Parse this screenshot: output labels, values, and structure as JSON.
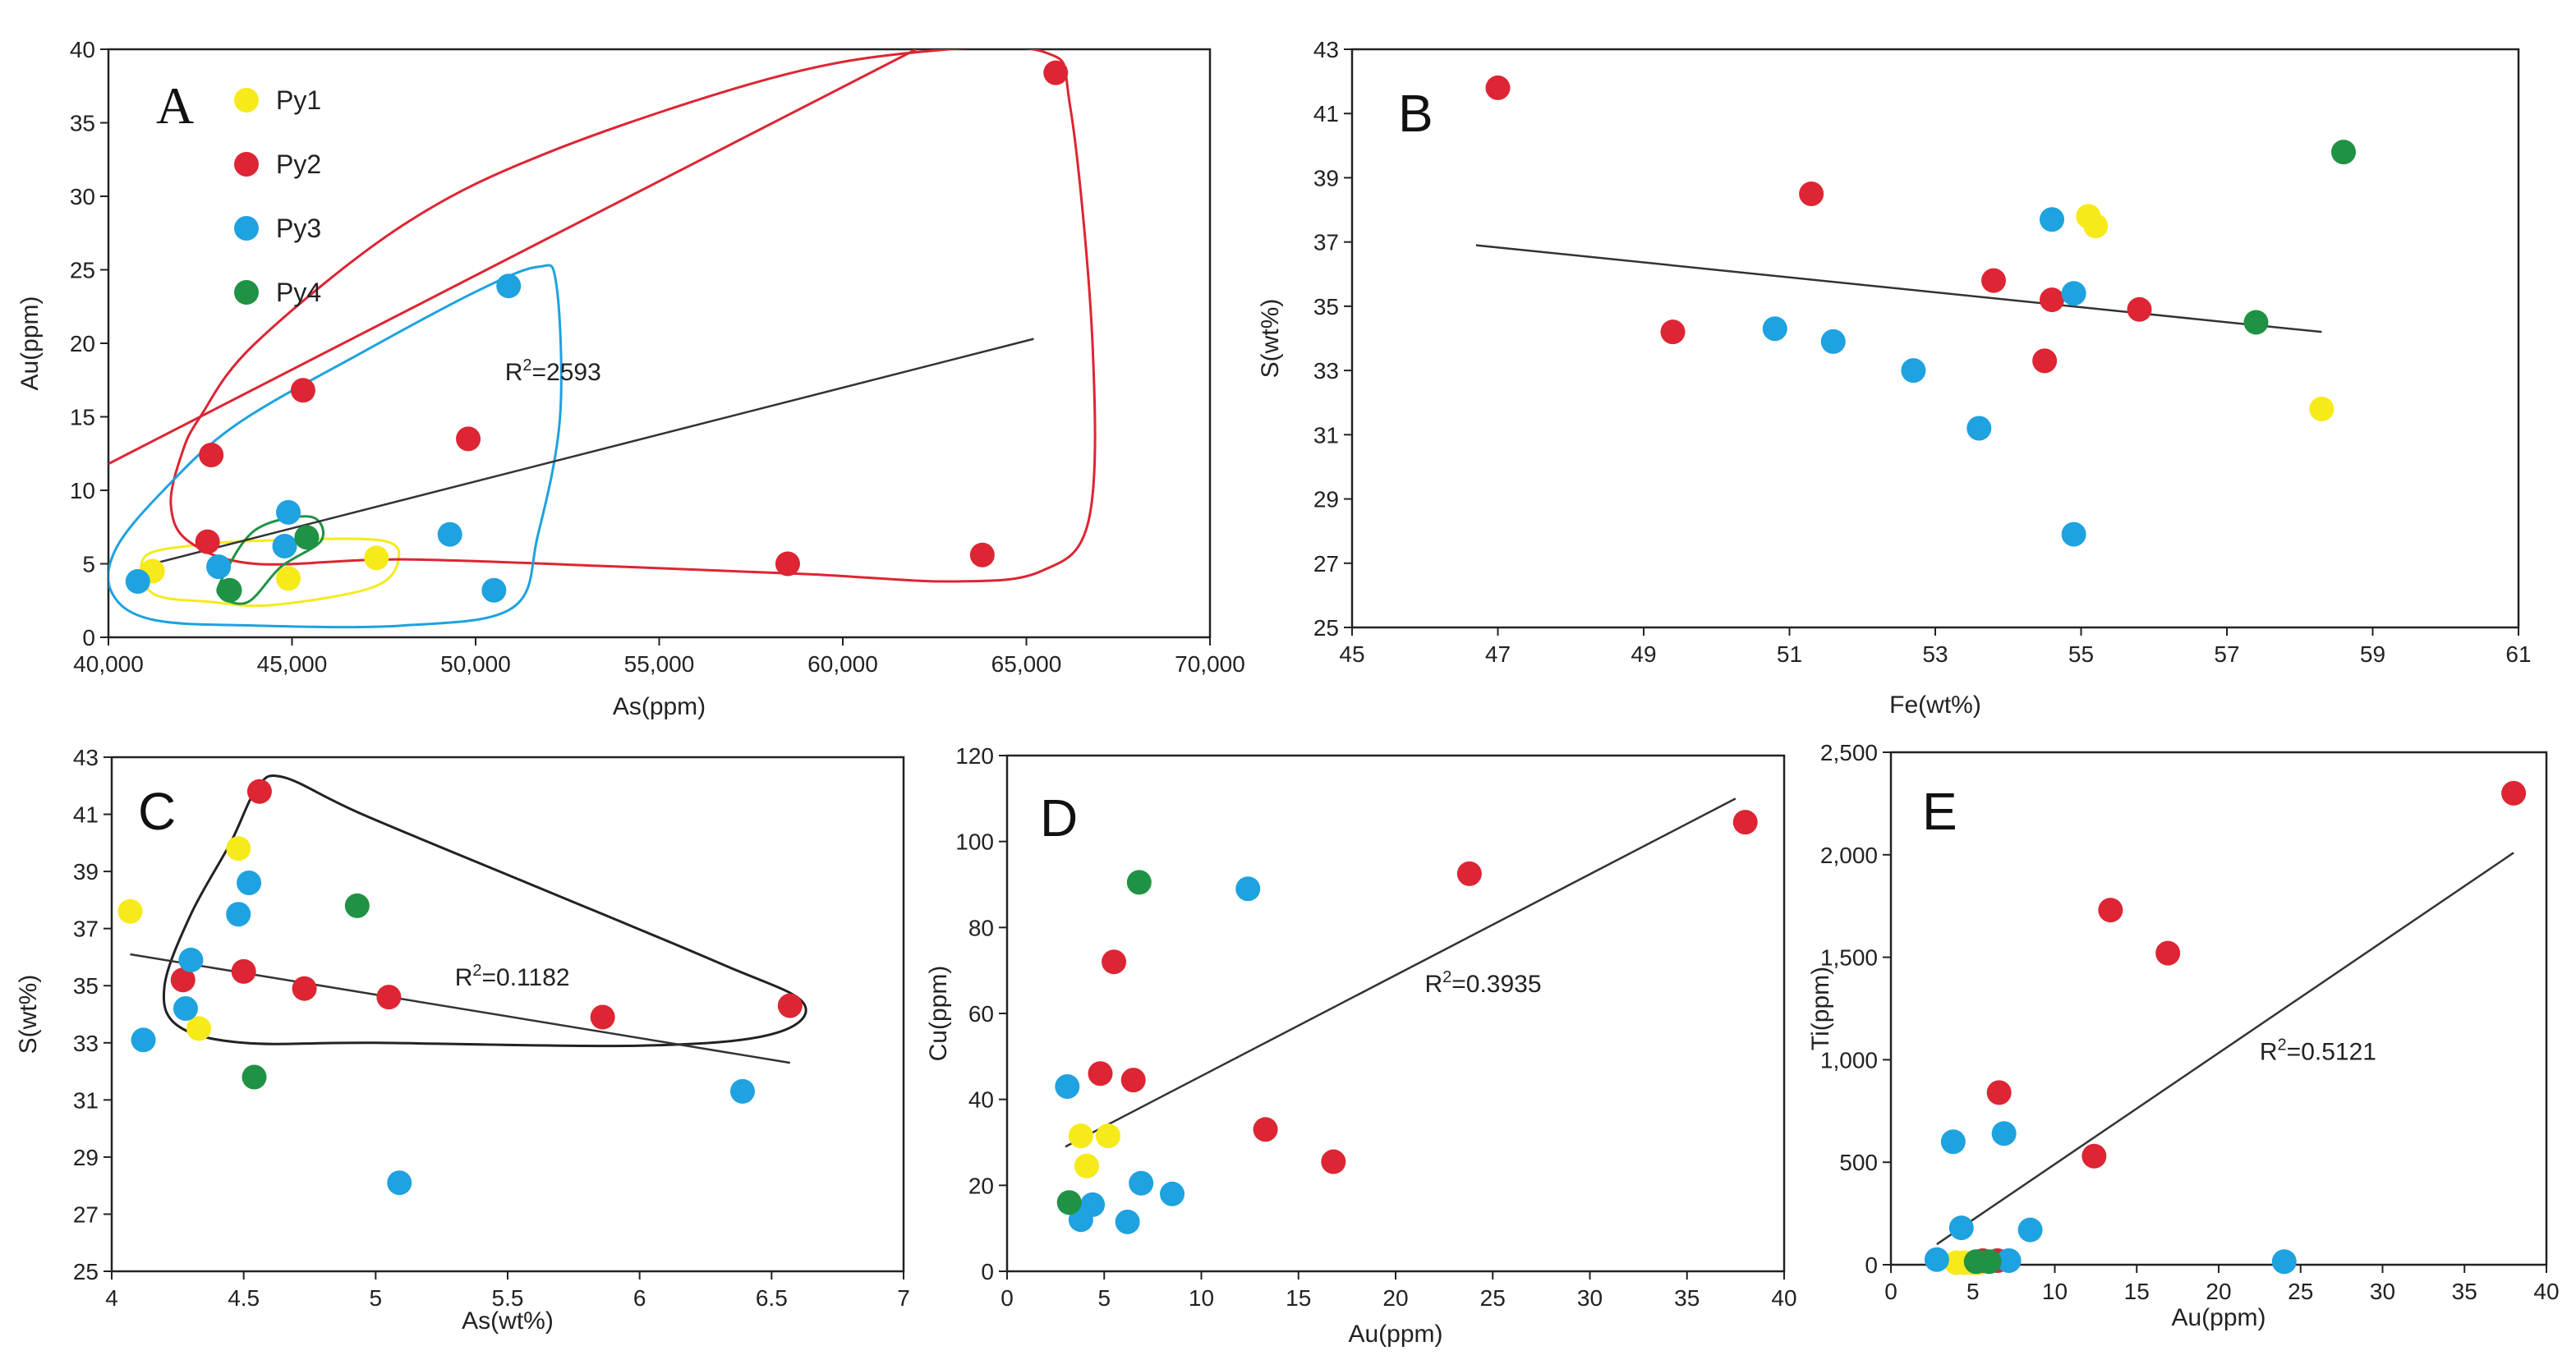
{
  "colors": {
    "Py1": "#f6ea1a",
    "Py2": "#dd2533",
    "Py3": "#1ea2e0",
    "Py4": "#1f9245",
    "line": "#333333"
  },
  "legend": [
    {
      "series": "Py1",
      "label": "Py1"
    },
    {
      "series": "Py2",
      "label": "Py2"
    },
    {
      "series": "Py3",
      "label": "Py3"
    },
    {
      "series": "Py4",
      "label": "Py4"
    }
  ],
  "chart_data": [
    {
      "id": "A",
      "panel_label": "A",
      "type": "scatter",
      "xlabel": "As(ppm)",
      "ylabel": "Au(ppm)",
      "xlim": [
        40000,
        70000
      ],
      "ylim": [
        0,
        40
      ],
      "xticks": [
        40000,
        45000,
        50000,
        55000,
        60000,
        65000,
        70000
      ],
      "xtick_labels": [
        "40,000",
        "45,000",
        "50,000",
        "55,000",
        "60,000",
        "65,000",
        "70,000"
      ],
      "yticks": [
        0,
        5,
        10,
        15,
        20,
        25,
        30,
        35,
        40
      ],
      "ytick_labels": [
        "0",
        "5",
        "10",
        "15",
        "20",
        "25",
        "30",
        "35",
        "40"
      ],
      "legend_position": "top-left",
      "annotation": {
        "prefix": "R",
        "sup": "2",
        "suffix": "=2593",
        "at": [
          50800,
          17.5
        ]
      },
      "trendline": [
        [
          40900,
          4.8
        ],
        [
          65200,
          20.3
        ]
      ],
      "extra_line": [
        [
          40000,
          11.8
        ],
        [
          62000,
          40
        ]
      ],
      "series": [
        {
          "name": "Py1",
          "points": [
            [
              41200,
              4.5
            ],
            [
              44900,
              4.0
            ],
            [
              47300,
              5.4
            ]
          ]
        },
        {
          "name": "Py2",
          "points": [
            [
              42700,
              6.5
            ],
            [
              42800,
              12.4
            ],
            [
              45300,
              16.8
            ],
            [
              49800,
              13.5
            ],
            [
              58500,
              5.0
            ],
            [
              63800,
              5.6
            ],
            [
              65800,
              38.4
            ]
          ]
        },
        {
          "name": "Py3",
          "points": [
            [
              40800,
              3.8
            ],
            [
              43000,
              4.8
            ],
            [
              44800,
              6.2
            ],
            [
              44900,
              8.5
            ],
            [
              49300,
              7.0
            ],
            [
              50500,
              3.2
            ],
            [
              50900,
              23.9
            ]
          ]
        },
        {
          "name": "Py4",
          "points": [
            [
              43300,
              3.2
            ],
            [
              45400,
              6.8
            ]
          ]
        }
      ],
      "envelopes": [
        {
          "series": "Py1",
          "points": [
            [
              41000,
              5.5
            ],
            [
              42500,
              6.3
            ],
            [
              44500,
              6.6
            ],
            [
              47400,
              6.6
            ],
            [
              47900,
              5.3
            ],
            [
              47200,
              3.4
            ],
            [
              44500,
              2.2
            ],
            [
              42800,
              2.4
            ],
            [
              41200,
              3.0
            ]
          ]
        },
        {
          "series": "Py2",
          "points": [
            [
              42000,
              12.5
            ],
            [
              42500,
              15.0
            ],
            [
              44000,
              20.0
            ],
            [
              48000,
              28.0
            ],
            [
              52000,
              33.0
            ],
            [
              58000,
              38.0
            ],
            [
              62000,
              39.8
            ],
            [
              65500,
              39.8
            ],
            [
              66200,
              36.0
            ],
            [
              66800,
              20.0
            ],
            [
              66700,
              8.0
            ],
            [
              65400,
              4.5
            ],
            [
              63000,
              3.8
            ],
            [
              59000,
              4.3
            ],
            [
              54000,
              4.8
            ],
            [
              48000,
              5.3
            ],
            [
              44000,
              5.0
            ],
            [
              42200,
              6.5
            ],
            [
              41700,
              9.0
            ]
          ]
        },
        {
          "series": "Py3",
          "points": [
            [
              40200,
              6.0
            ],
            [
              41500,
              10.0
            ],
            [
              43500,
              14.5
            ],
            [
              47000,
              19.5
            ],
            [
              50000,
              23.5
            ],
            [
              51700,
              25.2
            ],
            [
              52200,
              24.0
            ],
            [
              52300,
              15.0
            ],
            [
              51700,
              7.0
            ],
            [
              51000,
              2.0
            ],
            [
              48000,
              0.8
            ],
            [
              44000,
              0.8
            ],
            [
              41200,
              1.2
            ],
            [
              40100,
              3.0
            ]
          ]
        },
        {
          "series": "Py4",
          "points": [
            [
              43100,
              4.0
            ],
            [
              44000,
              7.3
            ],
            [
              45500,
              8.2
            ],
            [
              45800,
              6.6
            ],
            [
              44700,
              4.8
            ],
            [
              43800,
              2.4
            ],
            [
              43050,
              2.8
            ]
          ]
        }
      ]
    },
    {
      "id": "B",
      "panel_label": "B",
      "type": "scatter",
      "xlabel": "Fe(wt%)",
      "ylabel": "S(wt%)",
      "xlim": [
        45,
        61
      ],
      "ylim": [
        25,
        43
      ],
      "xticks": [
        45,
        47,
        49,
        51,
        53,
        55,
        57,
        59,
        61
      ],
      "xtick_labels": [
        "45",
        "47",
        "49",
        "51",
        "53",
        "55",
        "57",
        "59",
        "61"
      ],
      "yticks": [
        25,
        27,
        29,
        31,
        33,
        35,
        37,
        39,
        41,
        43
      ],
      "ytick_labels": [
        "25",
        "27",
        "29",
        "31",
        "33",
        "35",
        "37",
        "39",
        "41",
        "43"
      ],
      "trendline": [
        [
          46.7,
          36.9
        ],
        [
          58.3,
          34.2
        ]
      ],
      "series": [
        {
          "name": "Py1",
          "points": [
            [
              55.1,
              37.8
            ],
            [
              55.2,
              37.5
            ],
            [
              58.3,
              31.8
            ]
          ]
        },
        {
          "name": "Py2",
          "points": [
            [
              47.0,
              41.8
            ],
            [
              49.4,
              34.2
            ],
            [
              51.3,
              38.5
            ],
            [
              53.8,
              35.8
            ],
            [
              54.6,
              35.2
            ],
            [
              54.5,
              33.3
            ],
            [
              55.8,
              34.9
            ]
          ]
        },
        {
          "name": "Py3",
          "points": [
            [
              50.8,
              34.3
            ],
            [
              51.6,
              33.9
            ],
            [
              52.7,
              33.0
            ],
            [
              53.6,
              31.2
            ],
            [
              54.6,
              37.7
            ],
            [
              54.9,
              35.4
            ],
            [
              54.9,
              27.9
            ]
          ]
        },
        {
          "name": "Py4",
          "points": [
            [
              57.4,
              34.5
            ],
            [
              58.6,
              39.8
            ]
          ]
        }
      ]
    },
    {
      "id": "C",
      "panel_label": "C",
      "type": "scatter",
      "xlabel": "As(wt%)",
      "ylabel": "S(wt%)",
      "xlim": [
        4,
        7
      ],
      "ylim": [
        25,
        43
      ],
      "xticks": [
        4,
        4.5,
        5,
        5.5,
        6,
        6.5,
        7
      ],
      "xtick_labels": [
        "4",
        "4.5",
        "5",
        "5.5",
        "6",
        "6.5",
        "7"
      ],
      "yticks": [
        25,
        27,
        29,
        31,
        33,
        35,
        37,
        39,
        41,
        43
      ],
      "ytick_labels": [
        "25",
        "27",
        "29",
        "31",
        "33",
        "35",
        "37",
        "39",
        "41",
        "43"
      ],
      "annotation": {
        "prefix": "R",
        "sup": "2",
        "suffix": "=0.1182",
        "at": [
          5.3,
          35.0
        ]
      },
      "trendline": [
        [
          4.07,
          36.1
        ],
        [
          6.57,
          32.3
        ]
      ],
      "envelope": [
        [
          4.2,
          35.0
        ],
        [
          4.3,
          37.5
        ],
        [
          4.45,
          40.0
        ],
        [
          4.55,
          41.9
        ],
        [
          4.65,
          42.3
        ],
        [
          4.95,
          41.0
        ],
        [
          5.6,
          38.5
        ],
        [
          6.3,
          35.8
        ],
        [
          6.62,
          34.4
        ],
        [
          6.5,
          33.3
        ],
        [
          6.0,
          32.9
        ],
        [
          5.0,
          33.0
        ],
        [
          4.5,
          33.0
        ],
        [
          4.25,
          33.6
        ]
      ],
      "series": [
        {
          "name": "Py1",
          "points": [
            [
              4.07,
              37.6
            ],
            [
              4.33,
              33.5
            ],
            [
              4.48,
              39.8
            ]
          ]
        },
        {
          "name": "Py2",
          "points": [
            [
              4.27,
              35.2
            ],
            [
              4.5,
              35.5
            ],
            [
              4.56,
              41.8
            ],
            [
              4.73,
              34.9
            ],
            [
              5.05,
              34.6
            ],
            [
              5.86,
              33.9
            ],
            [
              6.57,
              34.3
            ]
          ]
        },
        {
          "name": "Py3",
          "points": [
            [
              4.12,
              33.1
            ],
            [
              4.28,
              34.2
            ],
            [
              4.3,
              35.9
            ],
            [
              4.48,
              37.5
            ],
            [
              4.52,
              38.6
            ],
            [
              5.09,
              28.1
            ],
            [
              6.39,
              31.3
            ]
          ]
        },
        {
          "name": "Py4",
          "points": [
            [
              4.54,
              31.8
            ],
            [
              4.93,
              37.8
            ]
          ]
        }
      ]
    },
    {
      "id": "D",
      "panel_label": "D",
      "type": "scatter",
      "xlabel": "Au(ppm)",
      "ylabel": "Cu(ppm)",
      "xlim": [
        0,
        40
      ],
      "ylim": [
        0,
        120
      ],
      "xticks": [
        0,
        5,
        10,
        15,
        20,
        25,
        30,
        35,
        40
      ],
      "xtick_labels": [
        "0",
        "5",
        "10",
        "15",
        "20",
        "25",
        "30",
        "35",
        "40"
      ],
      "yticks": [
        0,
        20,
        40,
        60,
        80,
        100,
        120
      ],
      "ytick_labels": [
        "0",
        "20",
        "40",
        "60",
        "80",
        "100",
        "120"
      ],
      "annotation": {
        "prefix": "R",
        "sup": "2",
        "suffix": "=0.3935",
        "at": [
          21.5,
          65
        ]
      },
      "trendline": [
        [
          3.0,
          29
        ],
        [
          37.5,
          110
        ]
      ],
      "series": [
        {
          "name": "Py1",
          "points": [
            [
              3.8,
              31.5
            ],
            [
              5.2,
              31.5
            ],
            [
              4.1,
              24.5
            ]
          ]
        },
        {
          "name": "Py2",
          "points": [
            [
              4.8,
              46
            ],
            [
              5.5,
              72
            ],
            [
              6.5,
              44.5
            ],
            [
              13.3,
              33
            ],
            [
              16.8,
              25.5
            ],
            [
              23.8,
              92.5
            ],
            [
              38.0,
              104.5
            ]
          ]
        },
        {
          "name": "Py3",
          "points": [
            [
              3.1,
              43
            ],
            [
              3.8,
              12
            ],
            [
              4.4,
              15.5
            ],
            [
              6.2,
              11.5
            ],
            [
              6.9,
              20.5
            ],
            [
              8.5,
              18
            ],
            [
              12.4,
              89
            ]
          ]
        },
        {
          "name": "Py4",
          "points": [
            [
              3.2,
              16
            ],
            [
              6.8,
              90.5
            ]
          ]
        }
      ]
    },
    {
      "id": "E",
      "panel_label": "E",
      "type": "scatter",
      "xlabel": "Au(ppm)",
      "ylabel": "Ti(ppm)",
      "xlim": [
        0,
        40
      ],
      "ylim": [
        0,
        2500
      ],
      "xticks": [
        0,
        5,
        10,
        15,
        20,
        25,
        30,
        35,
        40
      ],
      "xtick_labels": [
        "0",
        "5",
        "10",
        "15",
        "20",
        "25",
        "30",
        "35",
        "40"
      ],
      "yticks": [
        0,
        500,
        1000,
        1500,
        2000,
        2500
      ],
      "ytick_labels": [
        "0",
        "500",
        "1,000",
        "1,500",
        "2,000",
        "2,500"
      ],
      "annotation": {
        "prefix": "R",
        "sup": "2",
        "suffix": "=0.5121",
        "at": [
          22.5,
          1000
        ]
      },
      "trendline": [
        [
          2.8,
          100
        ],
        [
          38.0,
          2010
        ]
      ],
      "series": [
        {
          "name": "Py1",
          "points": [
            [
              4.0,
              10
            ],
            [
              4.5,
              10
            ],
            [
              5.0,
              10
            ],
            [
              5.4,
              10
            ]
          ]
        },
        {
          "name": "Py2",
          "points": [
            [
              6.6,
              840
            ],
            [
              12.4,
              530
            ],
            [
              13.4,
              1730
            ],
            [
              16.9,
              1520
            ],
            [
              38.0,
              2300
            ],
            [
              5.6,
              20
            ],
            [
              6.5,
              20
            ]
          ]
        },
        {
          "name": "Py3",
          "points": [
            [
              2.8,
              25
            ],
            [
              3.8,
              600
            ],
            [
              4.3,
              180
            ],
            [
              6.9,
              640
            ],
            [
              7.2,
              20
            ],
            [
              8.5,
              170
            ],
            [
              24.0,
              15
            ]
          ]
        },
        {
          "name": "Py4",
          "points": [
            [
              5.2,
              15
            ],
            [
              6.0,
              15
            ]
          ]
        }
      ]
    }
  ]
}
